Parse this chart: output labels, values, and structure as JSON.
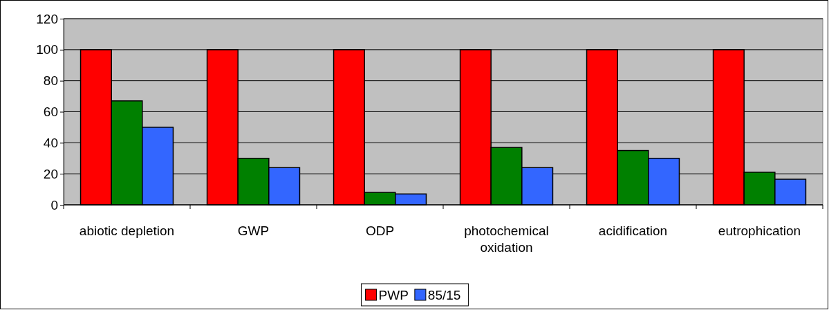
{
  "chart_data": {
    "type": "bar",
    "categories": [
      "abiotic depletion",
      "GWP",
      "ODP",
      "photochemical oxidation",
      "acidification",
      "eutrophication"
    ],
    "series": [
      {
        "name": "PWP",
        "color": "#ff0000",
        "values": [
          100,
          100,
          100,
          100,
          100,
          100
        ]
      },
      {
        "color": "#008000",
        "values": [
          67,
          30,
          8,
          37,
          35,
          21
        ]
      },
      {
        "name": "85/15",
        "color": "#3366ff",
        "values": [
          50,
          24,
          7,
          24,
          30,
          16.5
        ]
      }
    ],
    "ylim": [
      0,
      120
    ],
    "yticks": [
      0,
      20,
      40,
      60,
      80,
      100,
      120
    ],
    "grid": "y",
    "legend": "bottom"
  }
}
